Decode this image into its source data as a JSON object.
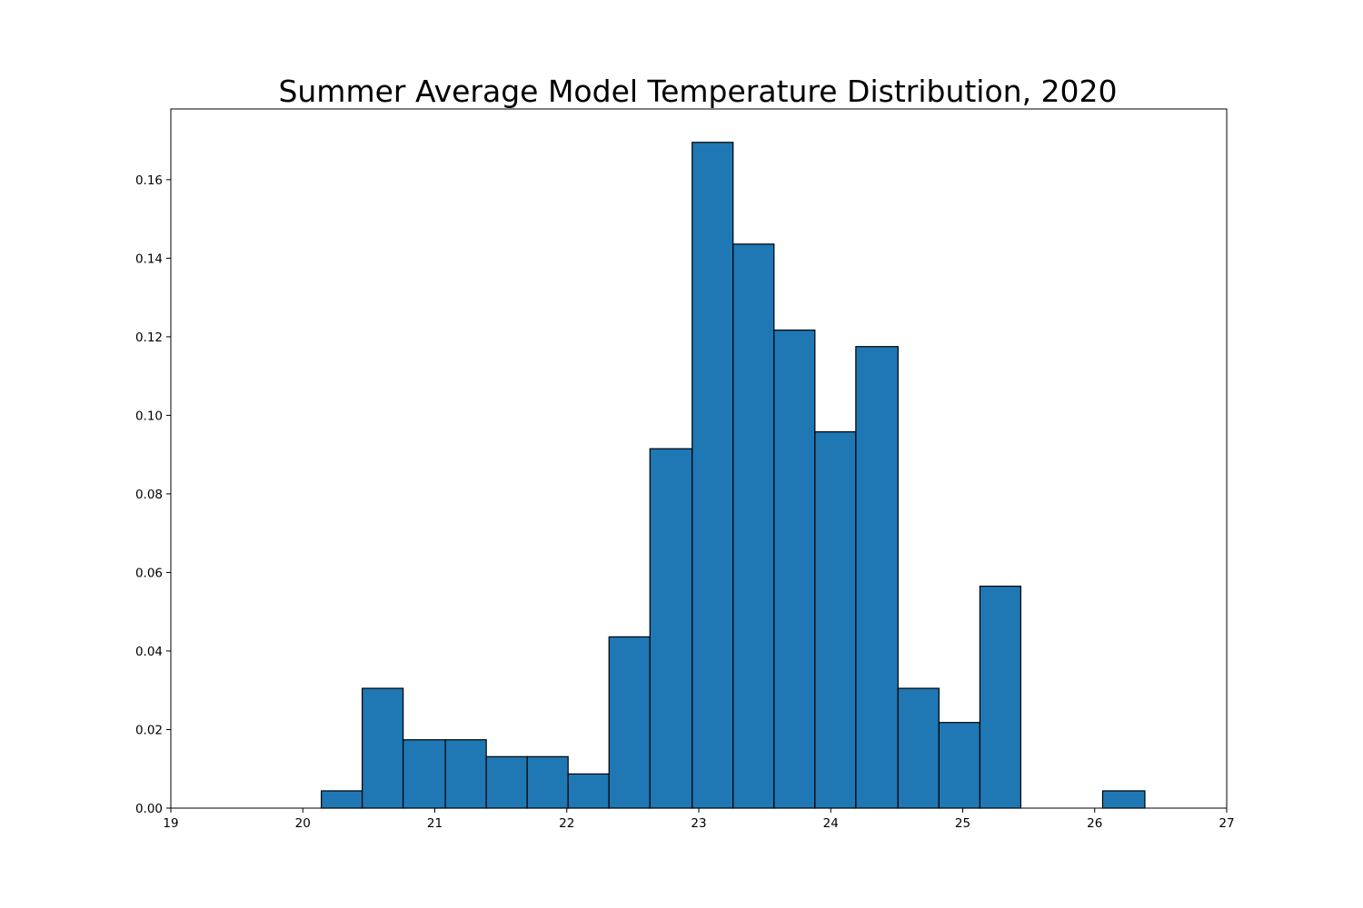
{
  "chart_data": {
    "type": "bar",
    "title": "Summer Average Model Temperature Distribution, 2020",
    "xlabel": "",
    "ylabel": "",
    "xlim": [
      19,
      27
    ],
    "ylim": [
      0,
      0.178
    ],
    "x_ticks": [
      19,
      20,
      21,
      22,
      23,
      24,
      25,
      26,
      27
    ],
    "y_ticks": [
      0.0,
      0.02,
      0.04,
      0.06,
      0.08,
      0.1,
      0.12,
      0.14,
      0.16
    ],
    "y_tick_labels": [
      "0.00",
      "0.02",
      "0.04",
      "0.06",
      "0.08",
      "0.10",
      "0.12",
      "0.14",
      "0.16"
    ],
    "grid": false,
    "bar_color": "#1f77b4",
    "edge_color": "#000000",
    "bins": [
      {
        "x0": 20.14,
        "x1": 20.45,
        "value": 0.0044
      },
      {
        "x0": 20.45,
        "x1": 20.76,
        "value": 0.0305
      },
      {
        "x0": 20.76,
        "x1": 21.08,
        "value": 0.0174
      },
      {
        "x0": 21.08,
        "x1": 21.39,
        "value": 0.0174
      },
      {
        "x0": 21.39,
        "x1": 21.7,
        "value": 0.0131
      },
      {
        "x0": 21.7,
        "x1": 22.01,
        "value": 0.0131
      },
      {
        "x0": 22.01,
        "x1": 22.32,
        "value": 0.0087
      },
      {
        "x0": 22.32,
        "x1": 22.63,
        "value": 0.0436
      },
      {
        "x0": 22.63,
        "x1": 22.95,
        "value": 0.0915
      },
      {
        "x0": 22.95,
        "x1": 23.26,
        "value": 0.1695
      },
      {
        "x0": 23.26,
        "x1": 23.57,
        "value": 0.1436
      },
      {
        "x0": 23.57,
        "x1": 23.88,
        "value": 0.1217
      },
      {
        "x0": 23.88,
        "x1": 24.19,
        "value": 0.0958
      },
      {
        "x0": 24.19,
        "x1": 24.51,
        "value": 0.1175
      },
      {
        "x0": 24.51,
        "x1": 24.82,
        "value": 0.0305
      },
      {
        "x0": 24.82,
        "x1": 25.13,
        "value": 0.0218
      },
      {
        "x0": 25.13,
        "x1": 25.44,
        "value": 0.0565
      },
      {
        "x0": 25.44,
        "x1": 25.75,
        "value": 0.0
      },
      {
        "x0": 25.75,
        "x1": 26.06,
        "value": 0.0
      },
      {
        "x0": 26.06,
        "x1": 26.38,
        "value": 0.0044
      }
    ]
  }
}
